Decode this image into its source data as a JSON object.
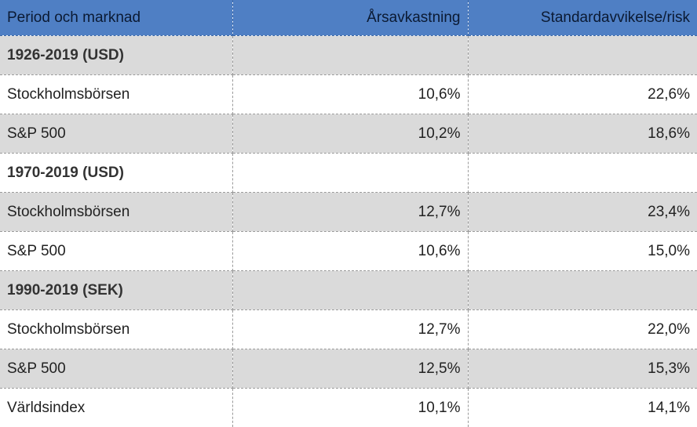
{
  "header": {
    "col1": "Period och marknad",
    "col2": "Årsavkastning",
    "col3": "Standardavvikelse/risk"
  },
  "rows": [
    {
      "type": "period",
      "label": "1926-2019 (USD)",
      "return": "",
      "risk": ""
    },
    {
      "type": "data",
      "label": "Stockholmsbörsen",
      "return": "10,6%",
      "risk": "22,6%"
    },
    {
      "type": "data",
      "label": "S&P 500",
      "return": "10,2%",
      "risk": "18,6%"
    },
    {
      "type": "period",
      "label": "1970-2019 (USD)",
      "return": "",
      "risk": ""
    },
    {
      "type": "data",
      "label": "Stockholmsbörsen",
      "return": "12,7%",
      "risk": "23,4%"
    },
    {
      "type": "data",
      "label": "S&P 500",
      "return": "10,6%",
      "risk": "15,0%"
    },
    {
      "type": "period",
      "label": "1990-2019 (SEK)",
      "return": "",
      "risk": ""
    },
    {
      "type": "data",
      "label": "Stockholmsbörsen",
      "return": "12,7%",
      "risk": "22,0%"
    },
    {
      "type": "data",
      "label": "S&P 500",
      "return": "12,5%",
      "risk": "15,3%"
    },
    {
      "type": "data",
      "label": "Världsindex",
      "return": "10,1%",
      "risk": "14,1%"
    }
  ],
  "colors": {
    "header_bg": "#4f7fc4",
    "row_grey": "#dadada",
    "row_white": "#ffffff"
  }
}
